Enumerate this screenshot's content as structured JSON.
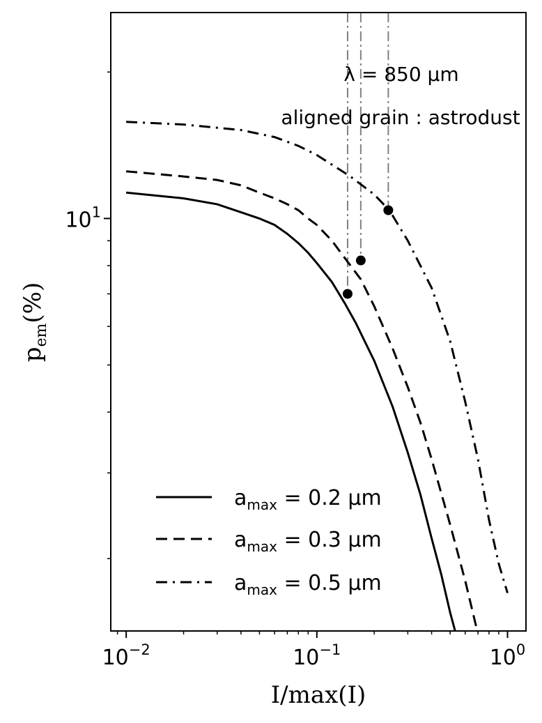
{
  "chart_data": {
    "type": "line",
    "xlabel_main": "I/max(I)",
    "ylabel_main": "p",
    "ylabel_sub": "em",
    "ylabel_unit": "(%)",
    "xscale": "log",
    "yscale": "log",
    "xlim": [
      0.0083,
      1.25
    ],
    "ylim": [
      1.42,
      26.5
    ],
    "xticks": [
      {
        "value": 0.01,
        "base": "10",
        "exp": "−2"
      },
      {
        "value": 0.1,
        "base": "10",
        "exp": "−1"
      },
      {
        "value": 1,
        "base": "10",
        "exp": "0"
      }
    ],
    "yticks": [
      {
        "value": 10,
        "base": "10",
        "exp": "1"
      }
    ],
    "annotations": [
      "λ = 850 μm",
      "aligned grain : astrodust"
    ],
    "legend_location": "lower left",
    "series": [
      {
        "name": "a_max = 0.2 μm",
        "legend_prefix": "a",
        "legend_sub": "max",
        "legend_value": " = 0.2 μm",
        "style": "solid",
        "x": [
          0.01,
          0.02,
          0.03,
          0.04,
          0.05,
          0.06,
          0.07,
          0.08,
          0.09,
          0.1,
          0.12,
          0.14,
          0.16,
          0.2,
          0.25,
          0.3,
          0.35,
          0.4,
          0.45,
          0.5,
          0.55
        ],
        "y": [
          11.3,
          11.0,
          10.7,
          10.3,
          10.0,
          9.7,
          9.3,
          8.9,
          8.5,
          8.1,
          7.4,
          6.7,
          6.1,
          5.1,
          4.1,
          3.3,
          2.7,
          2.2,
          1.85,
          1.55,
          1.35
        ]
      },
      {
        "name": "a_max = 0.3 μm",
        "legend_prefix": "a",
        "legend_sub": "max",
        "legend_value": " = 0.3 μm",
        "style": "dashed",
        "x": [
          0.01,
          0.02,
          0.03,
          0.04,
          0.05,
          0.06,
          0.07,
          0.08,
          0.09,
          0.1,
          0.12,
          0.14,
          0.17,
          0.2,
          0.25,
          0.3,
          0.35,
          0.4,
          0.5,
          0.6,
          0.7
        ],
        "y": [
          12.5,
          12.2,
          12.0,
          11.7,
          11.3,
          11.0,
          10.7,
          10.4,
          10.0,
          9.7,
          9.0,
          8.3,
          7.5,
          6.6,
          5.4,
          4.5,
          3.8,
          3.2,
          2.35,
          1.8,
          1.4
        ]
      },
      {
        "name": "a_max = 0.5 μm",
        "legend_prefix": "a",
        "legend_sub": "max",
        "legend_value": " = 0.5 μm",
        "style": "dashdot",
        "x": [
          0.01,
          0.02,
          0.04,
          0.06,
          0.08,
          0.1,
          0.12,
          0.15,
          0.2,
          0.24,
          0.3,
          0.4,
          0.5,
          0.6,
          0.7,
          0.8,
          0.9,
          1.0
        ],
        "y": [
          15.8,
          15.6,
          15.2,
          14.7,
          14.1,
          13.5,
          12.9,
          12.2,
          11.2,
          10.4,
          9.0,
          7.2,
          5.6,
          4.2,
          3.2,
          2.4,
          1.95,
          1.7
        ]
      }
    ],
    "markers": [
      {
        "x": 0.145,
        "y": 7.0
      },
      {
        "x": 0.17,
        "y": 8.2
      },
      {
        "x": 0.237,
        "y": 10.4
      }
    ],
    "vertical_lines": [
      0.145,
      0.17,
      0.237
    ]
  }
}
